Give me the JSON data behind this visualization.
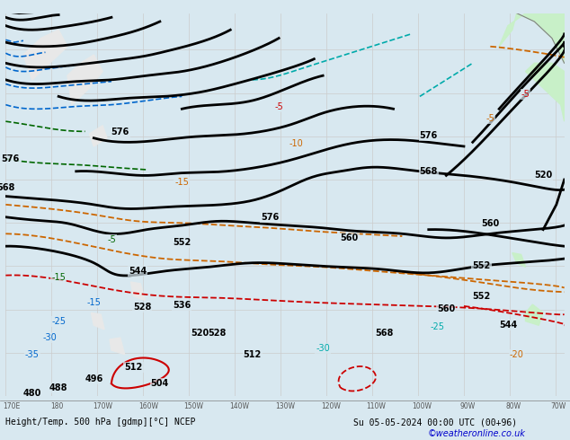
{
  "title_left": "Height/Temp. 500 hPa [gdmp][°C] NCEP",
  "title_right": "Su 05-05-2024 00:00 UTC (00+96)",
  "credit": "©weatheronline.co.uk",
  "background_color": "#d8e8f0",
  "land_color": "#e8e8e8",
  "highlight_land_color": "#c8f0c8",
  "grid_color": "#cccccc",
  "figsize": [
    6.34,
    4.9
  ],
  "dpi": 100,
  "bottom_bar_color": "#f0f0f0",
  "text_color": "#000000",
  "credit_color": "#0000cc",
  "axis_label_color": "#555555",
  "contour_black_color": "#000000",
  "contour_red_color": "#cc0000",
  "contour_orange_color": "#cc6600",
  "contour_green_color": "#006600",
  "contour_blue_color": "#0066cc",
  "contour_cyan_color": "#00aaaa"
}
